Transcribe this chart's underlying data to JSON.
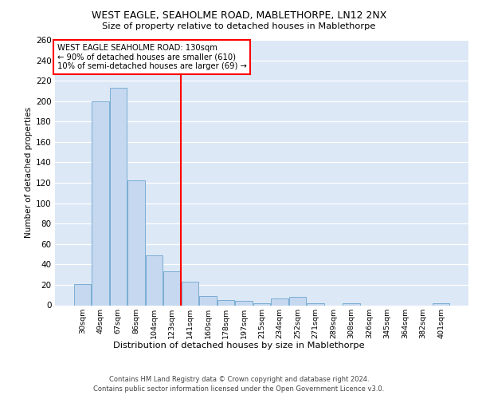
{
  "title_line1": "WEST EAGLE, SEAHOLME ROAD, MABLETHORPE, LN12 2NX",
  "title_line2": "Size of property relative to detached houses in Mablethorpe",
  "xlabel": "Distribution of detached houses by size in Mablethorpe",
  "ylabel": "Number of detached properties",
  "categories": [
    "30sqm",
    "49sqm",
    "67sqm",
    "86sqm",
    "104sqm",
    "123sqm",
    "141sqm",
    "160sqm",
    "178sqm",
    "197sqm",
    "215sqm",
    "234sqm",
    "252sqm",
    "271sqm",
    "289sqm",
    "308sqm",
    "326sqm",
    "345sqm",
    "364sqm",
    "382sqm",
    "401sqm"
  ],
  "values": [
    21,
    200,
    213,
    122,
    49,
    33,
    23,
    9,
    5,
    4,
    2,
    7,
    8,
    2,
    0,
    2,
    0,
    0,
    0,
    0,
    2
  ],
  "bar_color": "#c5d8f0",
  "bar_edge_color": "#7aadd4",
  "vline_color": "red",
  "vline_x_index": 6,
  "annotation_title": "WEST EAGLE SEAHOLME ROAD: 130sqm",
  "annotation_line2": "← 90% of detached houses are smaller (610)",
  "annotation_line3": "10% of semi-detached houses are larger (69) →",
  "annotation_box_color": "white",
  "annotation_box_edge": "red",
  "ylim": [
    0,
    260
  ],
  "yticks": [
    0,
    20,
    40,
    60,
    80,
    100,
    120,
    140,
    160,
    180,
    200,
    220,
    240,
    260
  ],
  "background_color": "#dce8f5",
  "footer_line1": "Contains HM Land Registry data © Crown copyright and database right 2024.",
  "footer_line2": "Contains public sector information licensed under the Open Government Licence v3.0."
}
